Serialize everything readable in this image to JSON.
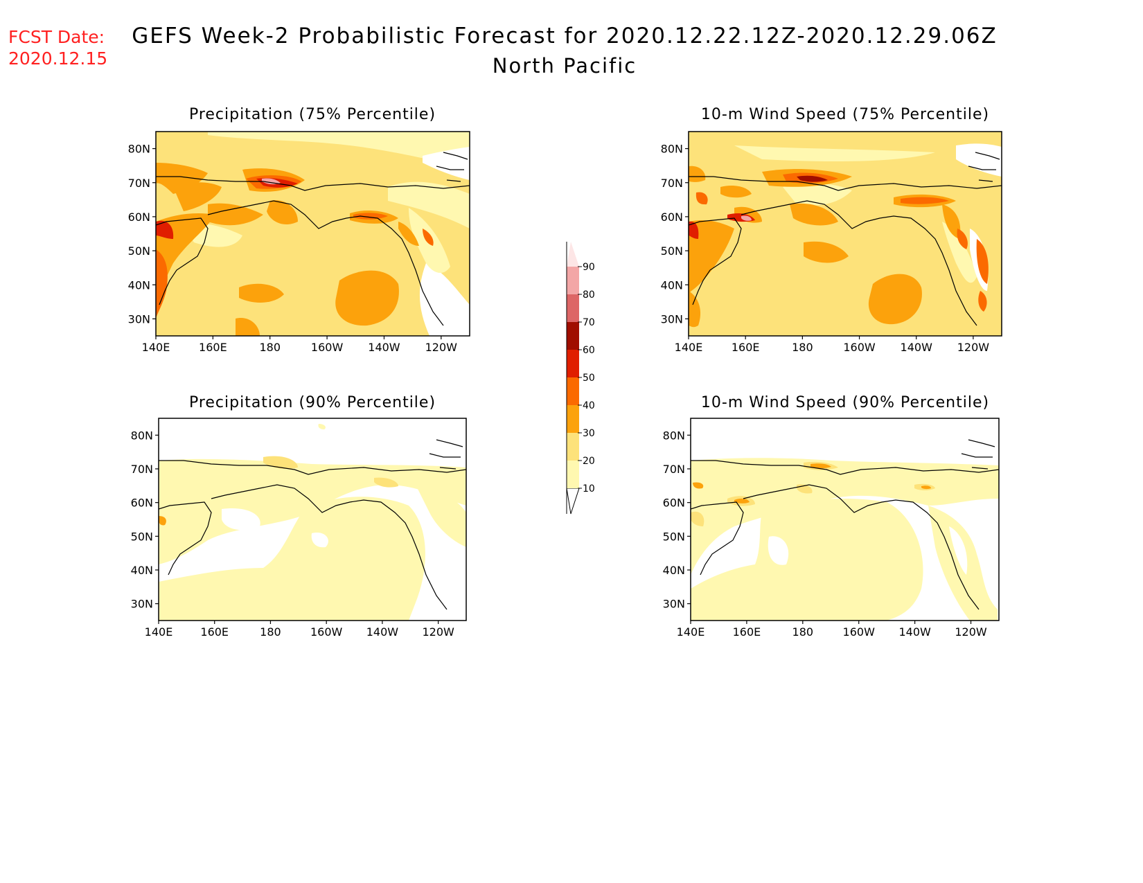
{
  "header": {
    "fcst_label": "FCST Date:",
    "fcst_date": "2020.12.15",
    "title": "GEFS Week-2 Probabilistic Forecast for 2020.12.22.12Z-2020.12.29.06Z",
    "subtitle": "North Pacific"
  },
  "panels": [
    {
      "title": "Precipitation (75% Percentile)"
    },
    {
      "title": "10-m Wind Speed (75% Percentile)"
    },
    {
      "title": "Precipitation (90% Percentile)"
    },
    {
      "title": "10-m Wind Speed (90% Percentile)"
    }
  ],
  "axes": {
    "lon_ticks": [
      "140E",
      "160E",
      "180",
      "160W",
      "140W",
      "120W"
    ],
    "lat_ticks": [
      "80N",
      "70N",
      "60N",
      "50N",
      "40N",
      "30N"
    ]
  },
  "colorbar": {
    "levels": [
      "10",
      "20",
      "30",
      "40",
      "50",
      "60",
      "70",
      "80",
      "90"
    ],
    "colors": [
      "#fff8b0",
      "#fde27a",
      "#fca20c",
      "#fb6a00",
      "#e01e00",
      "#a00e00",
      "#dd6666",
      "#f3a6a6",
      "#fde6e6"
    ]
  }
}
